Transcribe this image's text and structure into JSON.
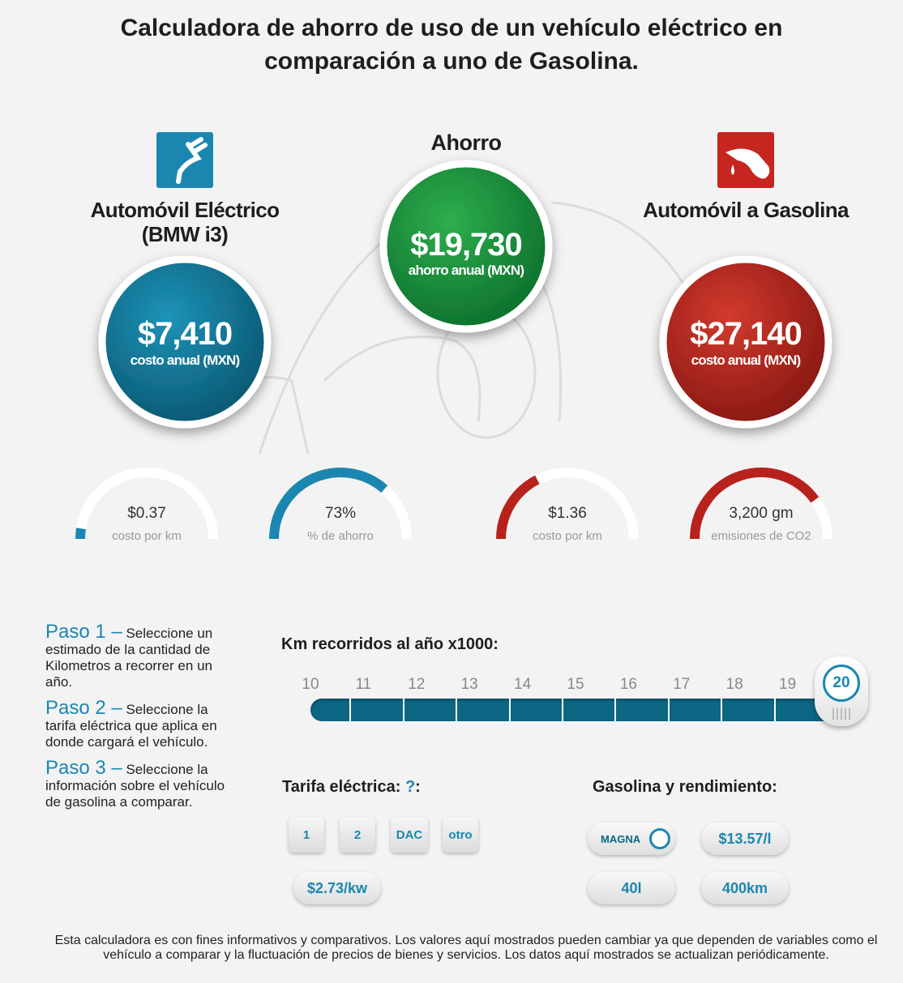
{
  "header": {
    "title": "Calculadora de ahorro de uso de un vehículo eléctrico en comparación a uno de Gasolina."
  },
  "electric": {
    "title": "Automóvil Eléctrico (BMW i3)",
    "amount": "$7,410",
    "caption": "costo anual (MXN)"
  },
  "savings": {
    "title": "Ahorro",
    "amount": "$19,730",
    "caption": "ahorro anual (MXN)"
  },
  "gasoline": {
    "title": "Automóvil a Gasolina",
    "amount": "$27,140",
    "caption": "costo anual (MXN)"
  },
  "gauges": [
    {
      "value": "$0.37",
      "label": "costo por km"
    },
    {
      "value": "73%",
      "label": "% de ahorro"
    },
    {
      "value": "$1.36",
      "label": "costo por km"
    },
    {
      "value": "3,200 gm",
      "label": "emisiones de CO2"
    }
  ],
  "steps": [
    {
      "label": "Paso 1 –",
      "text": "Seleccione un estimado de la cantidad de Kilometros a recorrer en un año."
    },
    {
      "label": "Paso 2 –",
      "text": "Seleccione la tarifa eléctrica que aplica en donde cargará el vehículo."
    },
    {
      "label": "Paso 3 –",
      "text": "Seleccione la información sobre el vehículo de gasolina a comparar."
    }
  ],
  "slider": {
    "label": "Km recorridos al año x1000:",
    "ticks": [
      "10",
      "11",
      "12",
      "13",
      "14",
      "15",
      "16",
      "17",
      "18",
      "19"
    ],
    "selected": "20"
  },
  "tariff": {
    "title": "Tarifa eléctrica:",
    "help": "?",
    "suffix": ":",
    "options": [
      "1",
      "2",
      "DAC",
      "otro"
    ],
    "rate": "$2.73/kw"
  },
  "fuel": {
    "title": "Gasolina y rendimiento:",
    "type": "MAGNA",
    "price": "$13.57/l",
    "capacity": "40l",
    "range": "400km"
  },
  "footer": "Esta calculadora es con fines informativos y comparativos. Los valores aquí mostrados pueden cambiar ya que dependen de variables como el vehículo a comparar y la fluctuación de precios de bienes y servicios. Los datos aquí mostrados se actualizan periódicamente."
}
